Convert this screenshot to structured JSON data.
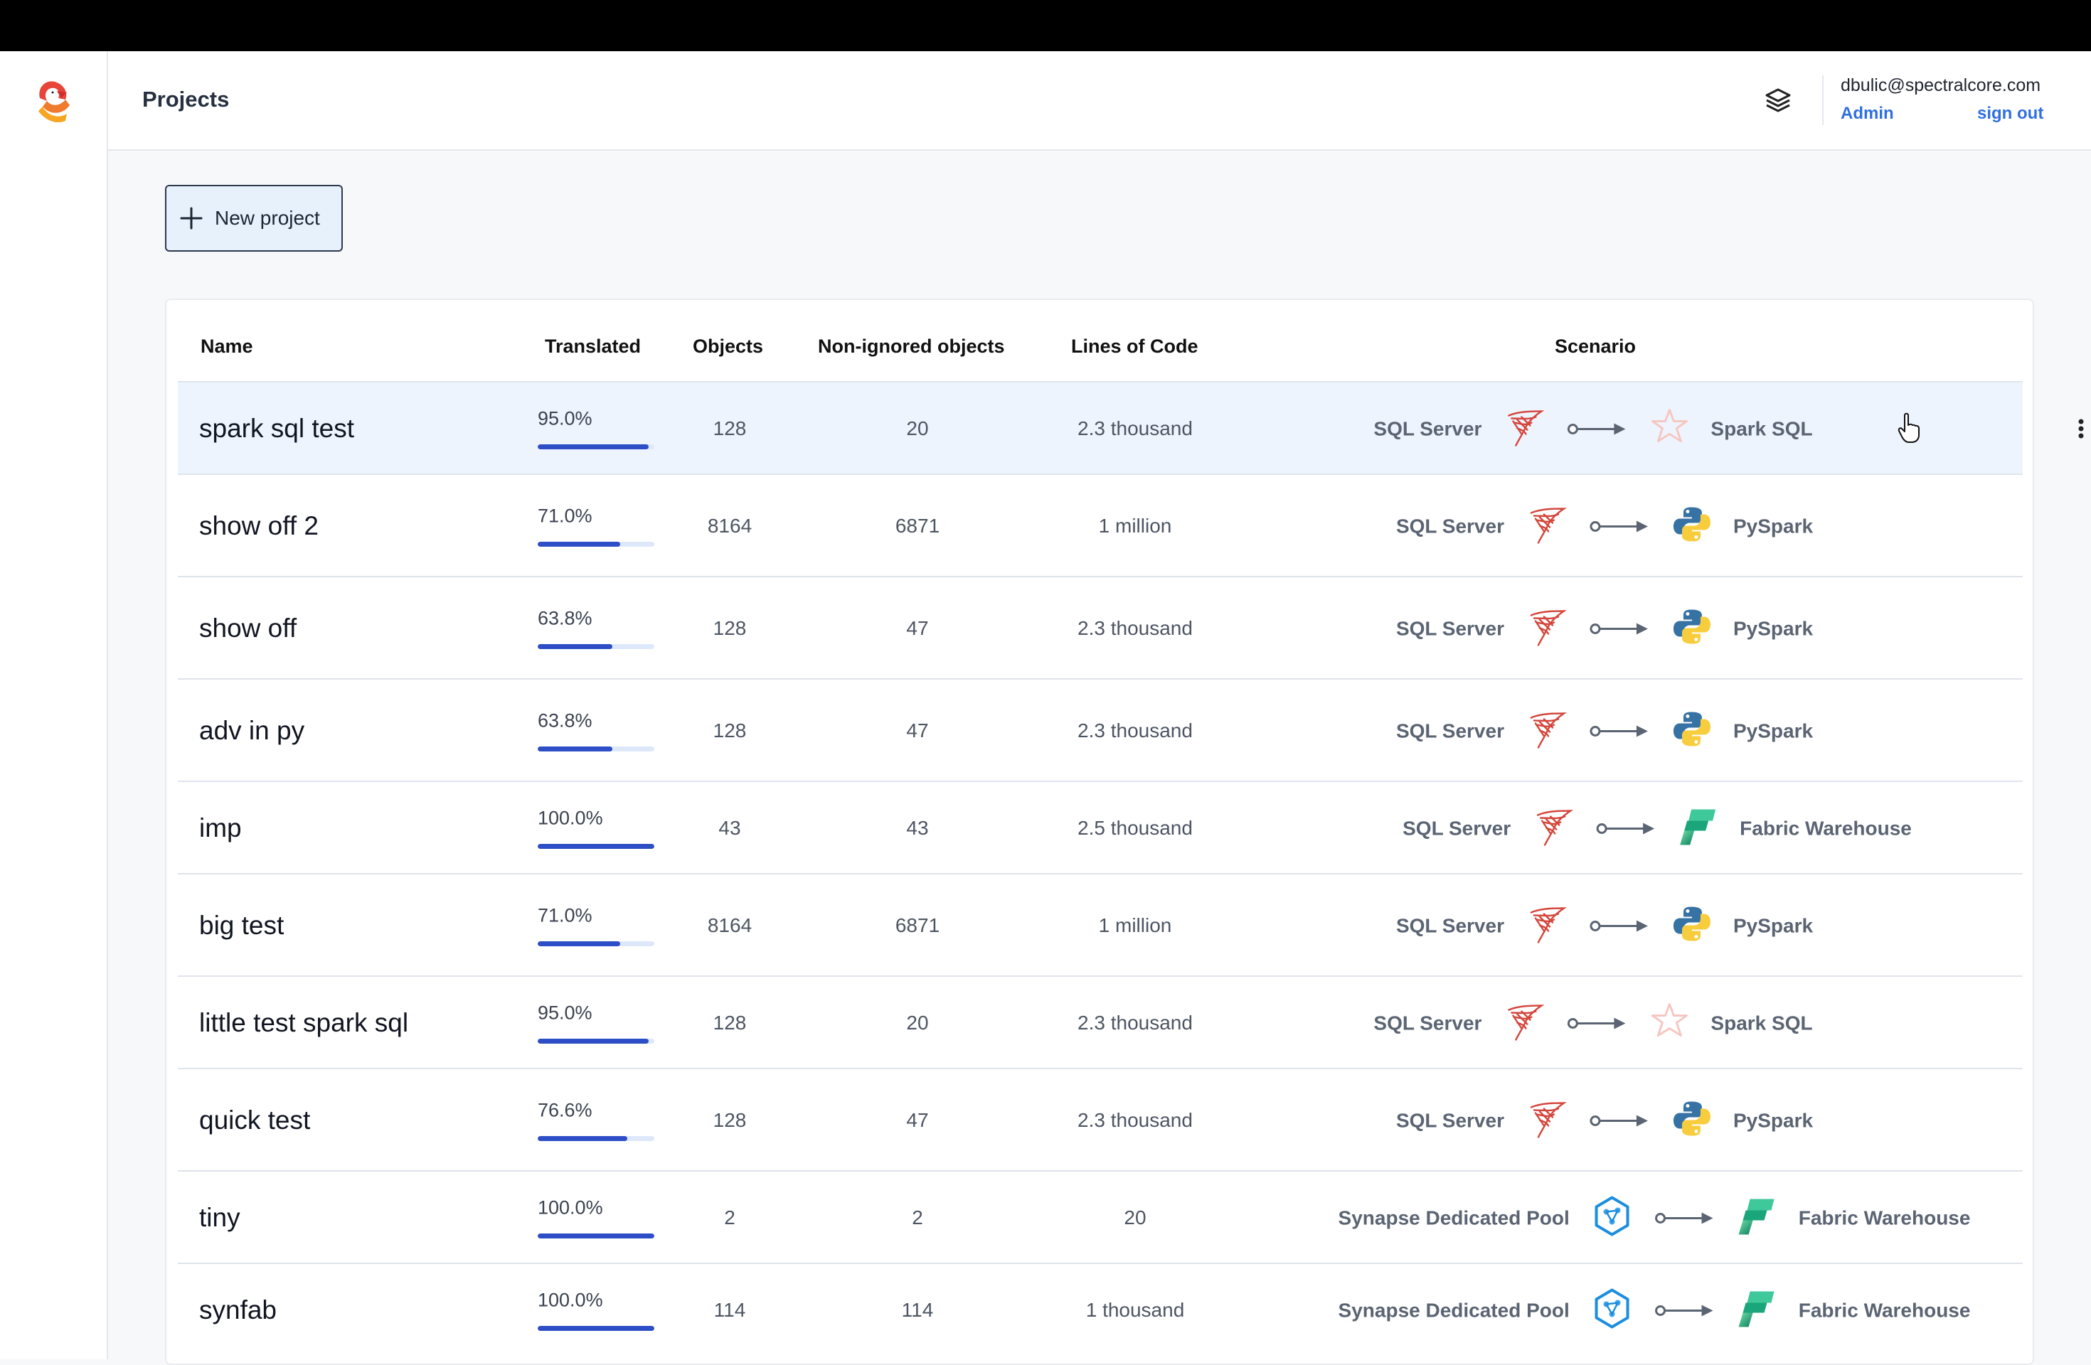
{
  "header": {
    "title": "Projects",
    "user_email": "dbulic@spectralcore.com",
    "admin_label": "Admin",
    "signout_label": "sign out"
  },
  "actions": {
    "new_project_label": "New project"
  },
  "table": {
    "columns": [
      "Name",
      "Translated",
      "Objects",
      "Non-ignored objects",
      "Lines of Code",
      "Scenario"
    ],
    "rows": [
      {
        "name": "spark sql test",
        "translated": "95.0%",
        "translated_fraction": 0.95,
        "objects": "128",
        "non_ignored": "20",
        "loc": "2.3 thousand",
        "source": "SQL Server",
        "source_icon": "sql-server-icon",
        "target": "Spark SQL",
        "target_icon": "spark-icon",
        "selected": true
      },
      {
        "name": "show off 2",
        "translated": "71.0%",
        "translated_fraction": 0.71,
        "objects": "8164",
        "non_ignored": "6871",
        "loc": "1 million",
        "source": "SQL Server",
        "source_icon": "sql-server-icon",
        "target": "PySpark",
        "target_icon": "python-icon",
        "selected": false
      },
      {
        "name": "show off",
        "translated": "63.8%",
        "translated_fraction": 0.638,
        "objects": "128",
        "non_ignored": "47",
        "loc": "2.3 thousand",
        "source": "SQL Server",
        "source_icon": "sql-server-icon",
        "target": "PySpark",
        "target_icon": "python-icon",
        "selected": false
      },
      {
        "name": "adv in py",
        "translated": "63.8%",
        "translated_fraction": 0.638,
        "objects": "128",
        "non_ignored": "47",
        "loc": "2.3 thousand",
        "source": "SQL Server",
        "source_icon": "sql-server-icon",
        "target": "PySpark",
        "target_icon": "python-icon",
        "selected": false
      },
      {
        "name": "imp",
        "translated": "100.0%",
        "translated_fraction": 1.0,
        "objects": "43",
        "non_ignored": "43",
        "loc": "2.5 thousand",
        "source": "SQL Server",
        "source_icon": "sql-server-icon",
        "target": "Fabric Warehouse",
        "target_icon": "fabric-icon",
        "selected": false
      },
      {
        "name": "big test",
        "translated": "71.0%",
        "translated_fraction": 0.71,
        "objects": "8164",
        "non_ignored": "6871",
        "loc": "1 million",
        "source": "SQL Server",
        "source_icon": "sql-server-icon",
        "target": "PySpark",
        "target_icon": "python-icon",
        "selected": false
      },
      {
        "name": "little test spark sql",
        "translated": "95.0%",
        "translated_fraction": 0.95,
        "objects": "128",
        "non_ignored": "20",
        "loc": "2.3 thousand",
        "source": "SQL Server",
        "source_icon": "sql-server-icon",
        "target": "Spark SQL",
        "target_icon": "spark-icon",
        "selected": false
      },
      {
        "name": "quick test",
        "translated": "76.6%",
        "translated_fraction": 0.766,
        "objects": "128",
        "non_ignored": "47",
        "loc": "2.3 thousand",
        "source": "SQL Server",
        "source_icon": "sql-server-icon",
        "target": "PySpark",
        "target_icon": "python-icon",
        "selected": false
      },
      {
        "name": "tiny",
        "translated": "100.0%",
        "translated_fraction": 1.0,
        "objects": "2",
        "non_ignored": "2",
        "loc": "20",
        "source": "Synapse Dedicated Pool",
        "source_icon": "synapse-icon",
        "target": "Fabric Warehouse",
        "target_icon": "fabric-icon",
        "selected": false
      },
      {
        "name": "synfab",
        "translated": "100.0%",
        "translated_fraction": 1.0,
        "objects": "114",
        "non_ignored": "114",
        "loc": "1 thousand",
        "source": "Synapse Dedicated Pool",
        "source_icon": "synapse-icon",
        "target": "Fabric Warehouse",
        "target_icon": "fabric-icon",
        "selected": false
      }
    ]
  },
  "colors": {
    "accent": "#2f6fe0",
    "progress": "#2d4ec6",
    "progress_track": "#dde9fb",
    "selected_row": "#eef4fd"
  }
}
